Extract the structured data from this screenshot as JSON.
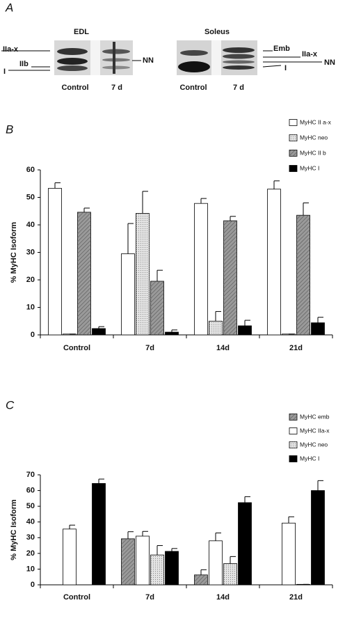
{
  "panel_a": {
    "label": "A",
    "gels": [
      {
        "title": "EDL",
        "lanes": [
          "Control",
          "7 d"
        ],
        "left_labels": [
          "IIa-x",
          "IIb",
          "I"
        ],
        "right_labels": [
          "NN"
        ]
      },
      {
        "title": "Soleus",
        "lanes": [
          "Control",
          "7 d"
        ],
        "right_labels": [
          "Emb",
          "IIa-x",
          "NN",
          "I"
        ]
      }
    ]
  },
  "chart_data": [
    {
      "type": "bar",
      "panel": "B",
      "ylabel": "% MyHC Isoform",
      "categories": [
        "Control",
        "7d",
        "14d",
        "21d"
      ],
      "series": [
        {
          "name": "MyHC II a-x",
          "color": "#ffffff",
          "pattern": "none",
          "values": [
            53.3,
            29.5,
            47.8,
            53
          ],
          "errors": [
            2,
            11,
            1.8,
            3
          ]
        },
        {
          "name": "MyHC neo",
          "color": "#e4e4e4",
          "pattern": "dots",
          "values": [
            0.3,
            44.2,
            5,
            0.3
          ],
          "errors": [
            0,
            8,
            3.5,
            0
          ]
        },
        {
          "name": "MyHC II b",
          "color": "#9a9a9a",
          "pattern": "hatch",
          "values": [
            44.6,
            19.5,
            41.5,
            43.5
          ],
          "errors": [
            1.5,
            4,
            1.6,
            4.5
          ]
        },
        {
          "name": "MyHC I",
          "color": "#000000",
          "pattern": "none",
          "values": [
            2.3,
            1,
            3.3,
            4.4
          ],
          "errors": [
            0.7,
            0.8,
            2,
            2
          ]
        }
      ],
      "ylim": [
        0,
        60
      ],
      "yticks": [
        0,
        10,
        20,
        30,
        40,
        50,
        60
      ],
      "legend": "top-right"
    },
    {
      "type": "bar",
      "panel": "C",
      "ylabel": "% MyHC Isoform",
      "categories": [
        "Control",
        "7d",
        "14d",
        "21d"
      ],
      "series": [
        {
          "name": "MyHC emb",
          "color": "#9a9a9a",
          "pattern": "hatch",
          "values": [
            0,
            29.3,
            6.3,
            0
          ],
          "errors": [
            0,
            4.5,
            3.3,
            0
          ]
        },
        {
          "name": "MyHC IIa-x",
          "color": "#ffffff",
          "pattern": "none",
          "values": [
            35.5,
            31,
            28,
            39.3
          ],
          "errors": [
            2.5,
            3,
            5,
            4
          ]
        },
        {
          "name": "MyHC neo",
          "color": "#e4e4e4",
          "pattern": "dots",
          "values": [
            0,
            19,
            13.5,
            0.3
          ],
          "errors": [
            0,
            6,
            4.5,
            0
          ]
        },
        {
          "name": "MyHC I",
          "color": "#000000",
          "pattern": "none",
          "values": [
            64.5,
            21.3,
            52.3,
            60
          ],
          "errors": [
            2.8,
            1.8,
            3.8,
            6.3
          ]
        }
      ],
      "ylim": [
        0,
        70
      ],
      "yticks": [
        0,
        10,
        20,
        30,
        40,
        50,
        60,
        70
      ],
      "legend": "top-right"
    }
  ]
}
